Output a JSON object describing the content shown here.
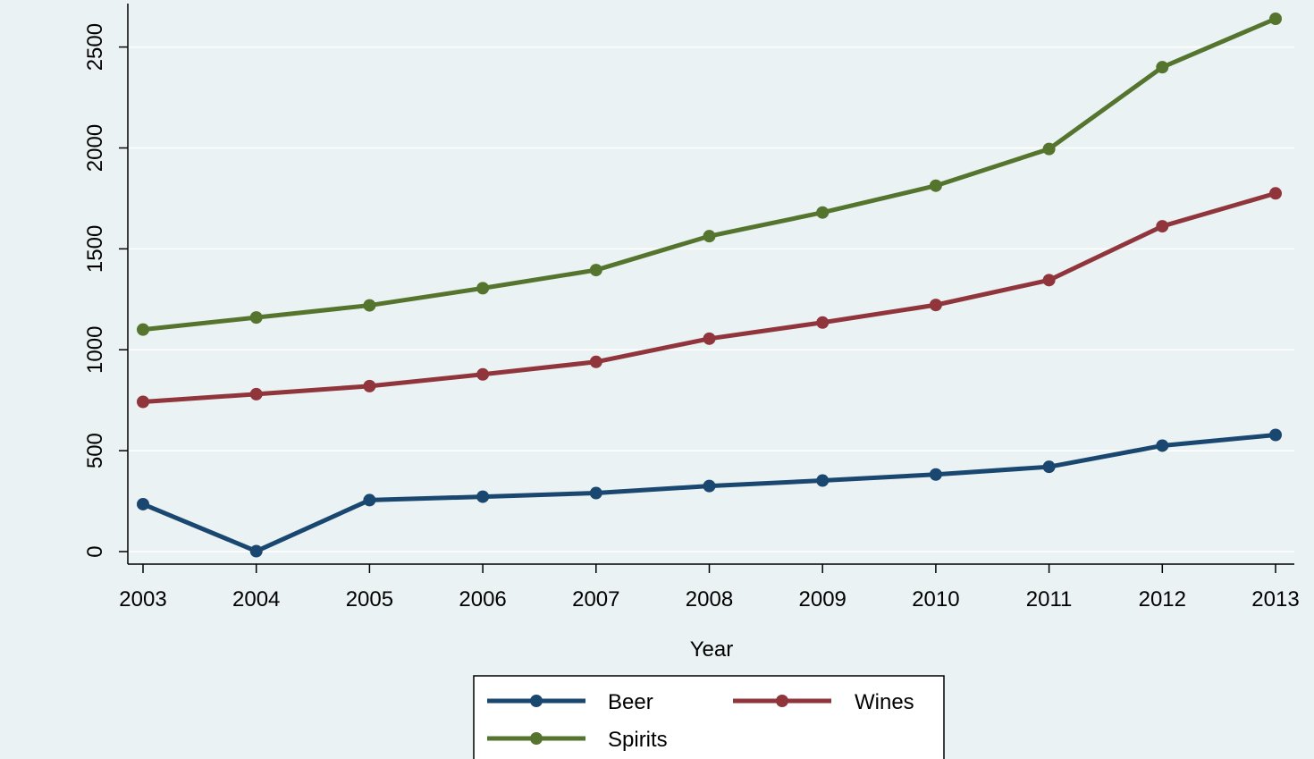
{
  "chart_data": {
    "type": "line",
    "xlabel": "Year",
    "ylabel": "",
    "x": [
      2003,
      2004,
      2005,
      2006,
      2007,
      2008,
      2009,
      2010,
      2011,
      2012,
      2013
    ],
    "xlim": [
      2003,
      2013
    ],
    "ylim": [
      0,
      2650
    ],
    "yticks": [
      0,
      500,
      1000,
      1500,
      2000,
      2500
    ],
    "grid": "horizontal",
    "legend_position": "bottom",
    "series": [
      {
        "name": "Beer",
        "color": "#1a476f",
        "values": [
          235,
          2,
          255,
          272,
          290,
          325,
          352,
          382,
          420,
          525,
          578
        ]
      },
      {
        "name": "Wines",
        "color": "#90353b",
        "values": [
          742,
          780,
          820,
          878,
          940,
          1055,
          1135,
          1222,
          1345,
          1612,
          1775
        ]
      },
      {
        "name": "Spirits",
        "color": "#55752f",
        "values": [
          1100,
          1160,
          1220,
          1305,
          1395,
          1563,
          1680,
          1813,
          1995,
          2400,
          2640
        ]
      }
    ]
  }
}
